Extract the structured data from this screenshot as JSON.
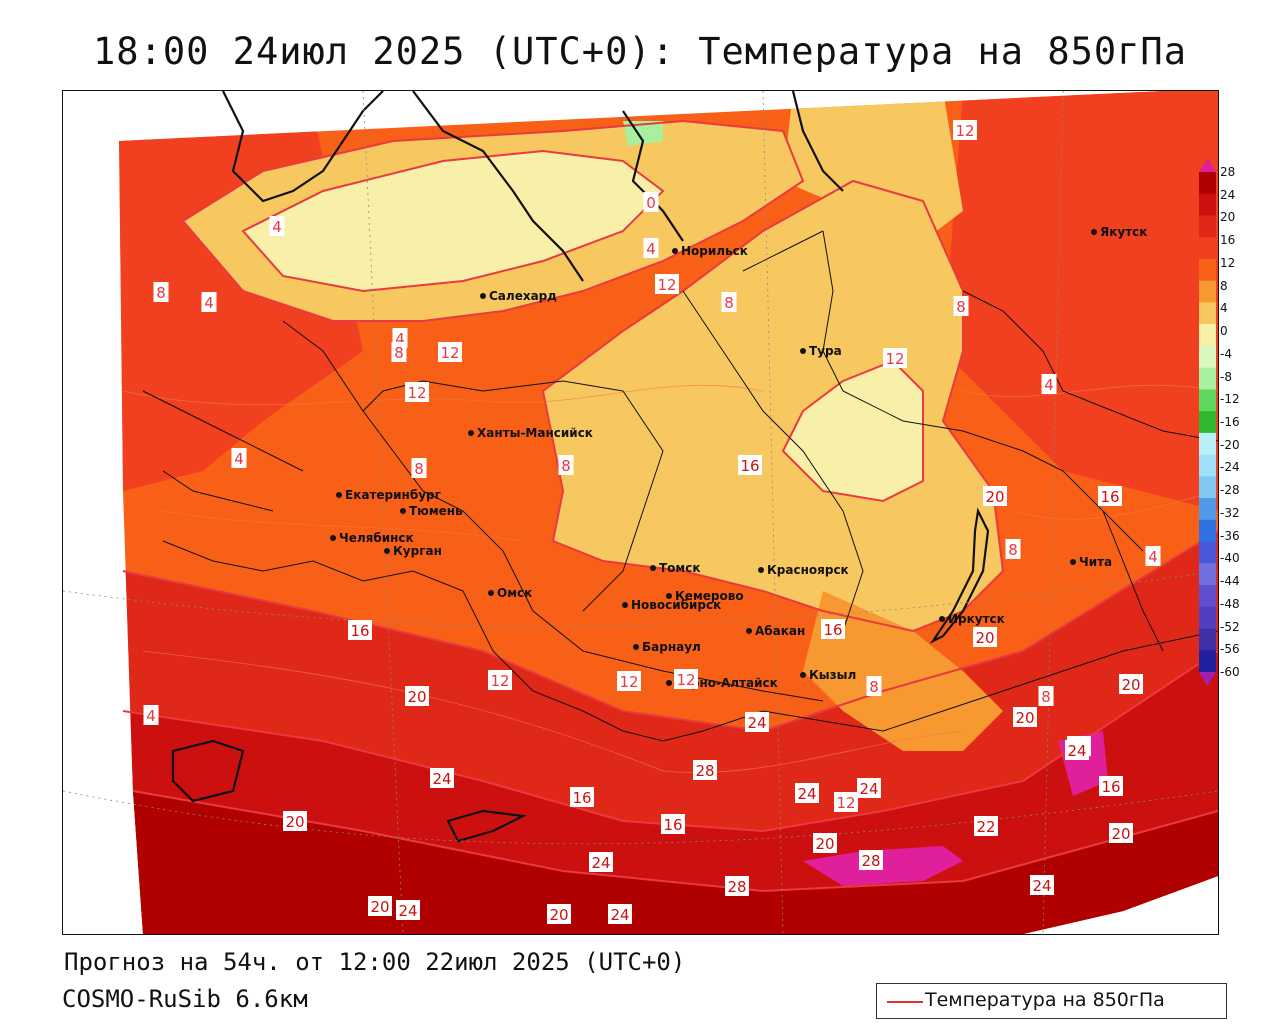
{
  "title": "18:00 24июл 2025 (UTC+0): Температура на 850гПа",
  "forecast": "Прогноз на 54ч. от 12:00 22июл 2025 (UTC+0)",
  "model": "COSMO-RuSib 6.6км",
  "legend_label": "Температура на 850гПа",
  "colorbar": {
    "labels": [
      "28",
      "24",
      "20",
      "16",
      "12",
      "8",
      "4",
      "0",
      "-4",
      "-8",
      "-12",
      "-16",
      "-20",
      "-24",
      "-28",
      "-32",
      "-36",
      "-40",
      "-44",
      "-48",
      "-52",
      "-56",
      "-60"
    ],
    "colors": [
      "#b00000",
      "#cc1010",
      "#e02818",
      "#f04020",
      "#f86018",
      "#f89830",
      "#f8c860",
      "#f8f0a8",
      "#d8f8c0",
      "#a8f0a0",
      "#60d860",
      "#30b830",
      "#b8f0f8",
      "#a0e0f8",
      "#80c8f0",
      "#5098e8",
      "#3070e0",
      "#4858d8",
      "#7070e0",
      "#6050d0",
      "#5040c0",
      "#4030a8",
      "#2020a0"
    ],
    "top_color": "#e0209a",
    "bottom_color": "#a020b0"
  },
  "cities": [
    {
      "name": "Норильск"
    },
    {
      "name": "Якутск"
    },
    {
      "name": "Салехард"
    },
    {
      "name": "Тура"
    },
    {
      "name": "Ханты-Мансийск"
    },
    {
      "name": "Екатеринбург"
    },
    {
      "name": "Тюмень"
    },
    {
      "name": "Челябинск"
    },
    {
      "name": "Курган"
    },
    {
      "name": "Омск"
    },
    {
      "name": "Новосибирск"
    },
    {
      "name": "Томск"
    },
    {
      "name": "Кемерово"
    },
    {
      "name": "Красноярск"
    },
    {
      "name": "Барнаул"
    },
    {
      "name": "Абакан"
    },
    {
      "name": "Горно-Алтайск"
    },
    {
      "name": "Кызыл"
    },
    {
      "name": "Иркутск"
    },
    {
      "name": "Чита"
    }
  ],
  "isotherm_labels": [
    "12",
    "4",
    "0",
    "4",
    "8",
    "4",
    "12",
    "8",
    "8",
    "4",
    "12",
    "4",
    "12",
    "12",
    "8",
    "4",
    "8",
    "8",
    "16",
    "20",
    "16",
    "4",
    "8",
    "20",
    "12",
    "4",
    "16",
    "16",
    "12",
    "8",
    "12",
    "20",
    "20",
    "24",
    "12",
    "16",
    "8",
    "24",
    "28",
    "24",
    "20",
    "16",
    "16",
    "12",
    "24",
    "24",
    "20",
    "20",
    "20",
    "24",
    "22",
    "28",
    "28",
    "24",
    "20",
    "24",
    "20",
    "24"
  ]
}
